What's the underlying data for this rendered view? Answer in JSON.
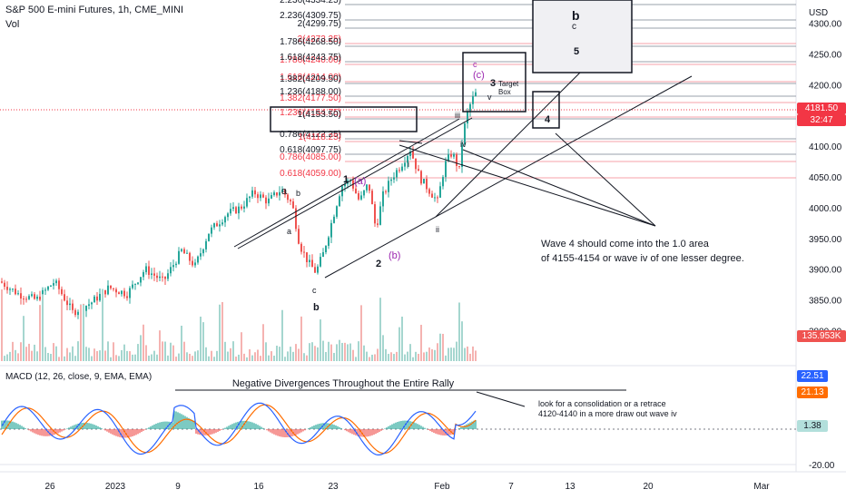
{
  "header": {
    "symbol": "S&P 500 E-mini Futures, 1h, CME_MINI",
    "vol_label": "Vol",
    "currency": "USD"
  },
  "price_axis": {
    "ticks": [
      "4300.00",
      "4250.00",
      "4200.00",
      "4150.00",
      "4100.00",
      "4050.00",
      "4000.00",
      "3950.00",
      "3900.00",
      "3850.00",
      "3800.00"
    ],
    "current_price": "4181.50",
    "countdown": "32:47",
    "volume_tag": "135.953K"
  },
  "macd": {
    "label": "MACD (12, 26, close, 9, EMA, EMA)",
    "macd_value": "22.51",
    "signal_value": "21.13",
    "hist_value": "1.38",
    "ticks": [
      "-20.00"
    ],
    "title": "Negative Divergences Throughout the Entire Rally",
    "note_line1": "look for a consolidation or a retrace",
    "note_line2": "4120-4140 in a more draw out wave iv"
  },
  "time_axis": [
    "26",
    "2023",
    "9",
    "16",
    "23",
    "Feb",
    "7",
    "13",
    "20",
    "Mar"
  ],
  "fib_levels": [
    {
      "label": "2.236(4334.25)",
      "color": "#131722"
    },
    {
      "label": "2.236(4309.75)",
      "color": "#131722"
    },
    {
      "label": "2(4299.75)",
      "color": "#131722"
    },
    {
      "label": "2(4273.25)",
      "color": "#f23645"
    },
    {
      "label": "1.786(4268.50)",
      "color": "#131722"
    },
    {
      "label": "1.786(4240.00)",
      "color": "#f23645"
    },
    {
      "label": "1.618(4243.75)",
      "color": "#131722"
    },
    {
      "label": "1.618(4214.00)",
      "color": "#f23645"
    },
    {
      "label": "1.382(4209.50)",
      "color": "#131722"
    },
    {
      "label": "1.236(4188.00)",
      "color": "#131722"
    },
    {
      "label": "1.382(4177.50)",
      "color": "#f23645"
    },
    {
      "label": "1.236(4154.75)",
      "color": "#f23645"
    },
    {
      "label": "1(4153.50)",
      "color": "#131722"
    },
    {
      "label": "0.786(4122.25)",
      "color": "#131722"
    },
    {
      "label": "1(4118.25)",
      "color": "#f23645"
    },
    {
      "label": "0.618(4097.75)",
      "color": "#131722"
    },
    {
      "label": "0.786(4085.00)",
      "color": "#f23645"
    },
    {
      "label": "0.618(4059.00)",
      "color": "#f23645"
    }
  ],
  "waves": {
    "w1": "1",
    "w2": "2",
    "w3": "3",
    "w4": "4",
    "w5": "5",
    "wa": "(a)",
    "wb": "(b)",
    "wc": "(c)",
    "c_small": "c",
    "i": "i",
    "ii": "ii",
    "iii": "iii",
    "iv": "iv",
    "v": "v",
    "a1": "a",
    "b1": "b",
    "a2": "a",
    "b_low": "b",
    "c_low": "c",
    "big_b": "b",
    "big_c": "c",
    "target": "Target",
    "box": "Box"
  },
  "annotation": {
    "line1": "Wave 4 should come into the 1.0 area",
    "line2": "of 4155-4154 or wave iv of one lesser degree."
  },
  "colors": {
    "up": "#26a69a",
    "down": "#ef5350",
    "macd": "#2962ff",
    "signal": "#ff6d00",
    "red": "#f23645",
    "purple": "#9c27b0"
  },
  "chart_data": {
    "type": "candlestick",
    "title": "S&P 500 E-mini Futures, 1h, CME_MINI",
    "ylim": [
      3790,
      4345
    ],
    "x_ticks": [
      "26",
      "2023",
      "9",
      "16",
      "23",
      "Feb",
      "7",
      "13",
      "20",
      "Mar"
    ],
    "key_points": [
      {
        "label": "b (Jan low)",
        "price": 3890
      },
      {
        "label": "2",
        "price": 3965
      },
      {
        "label": "ii",
        "price": 4005
      },
      {
        "label": "iv",
        "price": 4110
      },
      {
        "label": "current",
        "price": 4181.5
      }
    ]
  }
}
